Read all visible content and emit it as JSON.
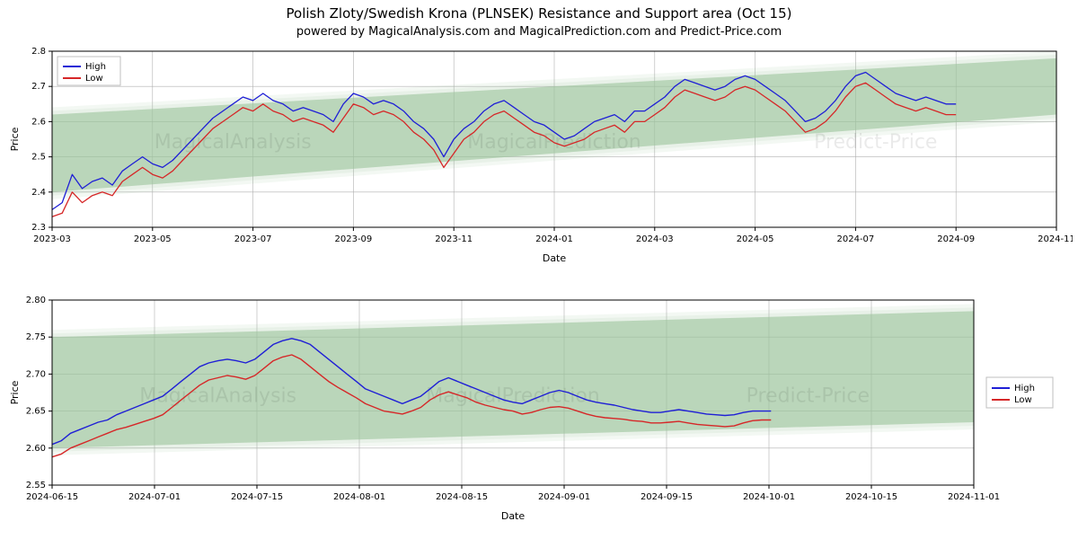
{
  "title": "Polish Zloty/Swedish Krona (PLNSEK) Resistance and Support area (Oct 15)",
  "subtitle": "powered by MagicalAnalysis.com and MagicalPrediction.com and Predict-Price.com",
  "watermarks": [
    "MagicalAnalysis",
    "MagicalPrediction",
    "Predict-Price"
  ],
  "legend": {
    "high_label": "High",
    "low_label": "Low"
  },
  "colors": {
    "high_line": "#1f1fd6",
    "low_line": "#d62728",
    "band_fill": "#9cc59c",
    "band_opacity": 0.55,
    "grid": "#b0b0b0",
    "frame": "#000000",
    "background": "#ffffff"
  },
  "top_chart": {
    "type": "line-with-band",
    "xlabel": "Date",
    "ylabel": "Price",
    "ylim": [
      2.3,
      2.8
    ],
    "yticks": [
      2.3,
      2.4,
      2.5,
      2.6,
      2.7,
      2.8
    ],
    "xticks": [
      "2023-03",
      "2023-05",
      "2023-07",
      "2023-09",
      "2023-11",
      "2024-01",
      "2024-03",
      "2024-05",
      "2024-07",
      "2024-09",
      "2024-11"
    ],
    "x_index_range": [
      0,
      100
    ],
    "data_x_end": 90,
    "band_low_start": 2.4,
    "band_low_end": 2.62,
    "band_high_start": 2.62,
    "band_high_end": 2.78,
    "high": [
      2.35,
      2.37,
      2.45,
      2.41,
      2.43,
      2.44,
      2.42,
      2.46,
      2.48,
      2.5,
      2.48,
      2.47,
      2.49,
      2.52,
      2.55,
      2.58,
      2.61,
      2.63,
      2.65,
      2.67,
      2.66,
      2.68,
      2.66,
      2.65,
      2.63,
      2.64,
      2.63,
      2.62,
      2.6,
      2.65,
      2.68,
      2.67,
      2.65,
      2.66,
      2.65,
      2.63,
      2.6,
      2.58,
      2.55,
      2.5,
      2.55,
      2.58,
      2.6,
      2.63,
      2.65,
      2.66,
      2.64,
      2.62,
      2.6,
      2.59,
      2.57,
      2.55,
      2.56,
      2.58,
      2.6,
      2.61,
      2.62,
      2.6,
      2.63,
      2.63,
      2.65,
      2.67,
      2.7,
      2.72,
      2.71,
      2.7,
      2.69,
      2.7,
      2.72,
      2.73,
      2.72,
      2.7,
      2.68,
      2.66,
      2.63,
      2.6,
      2.61,
      2.63,
      2.66,
      2.7,
      2.73,
      2.74,
      2.72,
      2.7,
      2.68,
      2.67,
      2.66,
      2.67,
      2.66,
      2.65,
      2.65
    ],
    "low": [
      2.33,
      2.34,
      2.4,
      2.37,
      2.39,
      2.4,
      2.39,
      2.43,
      2.45,
      2.47,
      2.45,
      2.44,
      2.46,
      2.49,
      2.52,
      2.55,
      2.58,
      2.6,
      2.62,
      2.64,
      2.63,
      2.65,
      2.63,
      2.62,
      2.6,
      2.61,
      2.6,
      2.59,
      2.57,
      2.61,
      2.65,
      2.64,
      2.62,
      2.63,
      2.62,
      2.6,
      2.57,
      2.55,
      2.52,
      2.47,
      2.51,
      2.55,
      2.57,
      2.6,
      2.62,
      2.63,
      2.61,
      2.59,
      2.57,
      2.56,
      2.54,
      2.53,
      2.54,
      2.55,
      2.57,
      2.58,
      2.59,
      2.57,
      2.6,
      2.6,
      2.62,
      2.64,
      2.67,
      2.69,
      2.68,
      2.67,
      2.66,
      2.67,
      2.69,
      2.7,
      2.69,
      2.67,
      2.65,
      2.63,
      2.6,
      2.57,
      2.58,
      2.6,
      2.63,
      2.67,
      2.7,
      2.71,
      2.69,
      2.67,
      2.65,
      2.64,
      2.63,
      2.64,
      2.63,
      2.62,
      2.62
    ],
    "line_width": 1.3,
    "legend_pos": "upper-left"
  },
  "bottom_chart": {
    "type": "line-with-band",
    "xlabel": "Date",
    "ylabel": "Price",
    "ylim": [
      2.55,
      2.8
    ],
    "yticks": [
      2.55,
      2.6,
      2.65,
      2.7,
      2.75,
      2.8
    ],
    "xticks": [
      "2024-06-15",
      "2024-07-01",
      "2024-07-15",
      "2024-08-01",
      "2024-08-15",
      "2024-09-01",
      "2024-09-15",
      "2024-10-01",
      "2024-10-15",
      "2024-11-01"
    ],
    "x_index_range": [
      0,
      100
    ],
    "data_x_end": 78,
    "band_low_start": 2.6,
    "band_low_end": 2.635,
    "band_high_start": 2.75,
    "band_high_end": 2.785,
    "high": [
      2.605,
      2.61,
      2.62,
      2.625,
      2.63,
      2.635,
      2.638,
      2.645,
      2.65,
      2.655,
      2.66,
      2.665,
      2.67,
      2.68,
      2.69,
      2.7,
      2.71,
      2.715,
      2.718,
      2.72,
      2.718,
      2.715,
      2.72,
      2.73,
      2.74,
      2.745,
      2.748,
      2.745,
      2.74,
      2.73,
      2.72,
      2.71,
      2.7,
      2.69,
      2.68,
      2.675,
      2.67,
      2.665,
      2.66,
      2.665,
      2.67,
      2.68,
      2.69,
      2.695,
      2.69,
      2.685,
      2.68,
      2.675,
      2.67,
      2.665,
      2.662,
      2.66,
      2.665,
      2.67,
      2.675,
      2.678,
      2.675,
      2.67,
      2.665,
      2.662,
      2.66,
      2.658,
      2.655,
      2.652,
      2.65,
      2.648,
      2.648,
      2.65,
      2.652,
      2.65,
      2.648,
      2.646,
      2.645,
      2.644,
      2.645,
      2.648,
      2.65,
      2.65,
      2.65
    ],
    "low": [
      2.588,
      2.592,
      2.6,
      2.605,
      2.61,
      2.615,
      2.62,
      2.625,
      2.628,
      2.632,
      2.636,
      2.64,
      2.645,
      2.655,
      2.665,
      2.675,
      2.685,
      2.692,
      2.695,
      2.698,
      2.696,
      2.693,
      2.698,
      2.708,
      2.718,
      2.723,
      2.726,
      2.72,
      2.71,
      2.7,
      2.69,
      2.682,
      2.675,
      2.668,
      2.66,
      2.655,
      2.65,
      2.648,
      2.646,
      2.65,
      2.655,
      2.665,
      2.672,
      2.676,
      2.672,
      2.668,
      2.662,
      2.658,
      2.655,
      2.652,
      2.65,
      2.646,
      2.648,
      2.652,
      2.655,
      2.656,
      2.654,
      2.65,
      2.646,
      2.643,
      2.641,
      2.64,
      2.639,
      2.637,
      2.636,
      2.634,
      2.634,
      2.635,
      2.636,
      2.634,
      2.632,
      2.631,
      2.63,
      2.629,
      2.63,
      2.634,
      2.637,
      2.638,
      2.638
    ],
    "line_width": 1.4,
    "legend_pos": "right"
  },
  "typography": {
    "title_fontsize": 15,
    "subtitle_fontsize": 13,
    "axis_label_fontsize": 11,
    "tick_fontsize": 10,
    "legend_fontsize": 10
  }
}
